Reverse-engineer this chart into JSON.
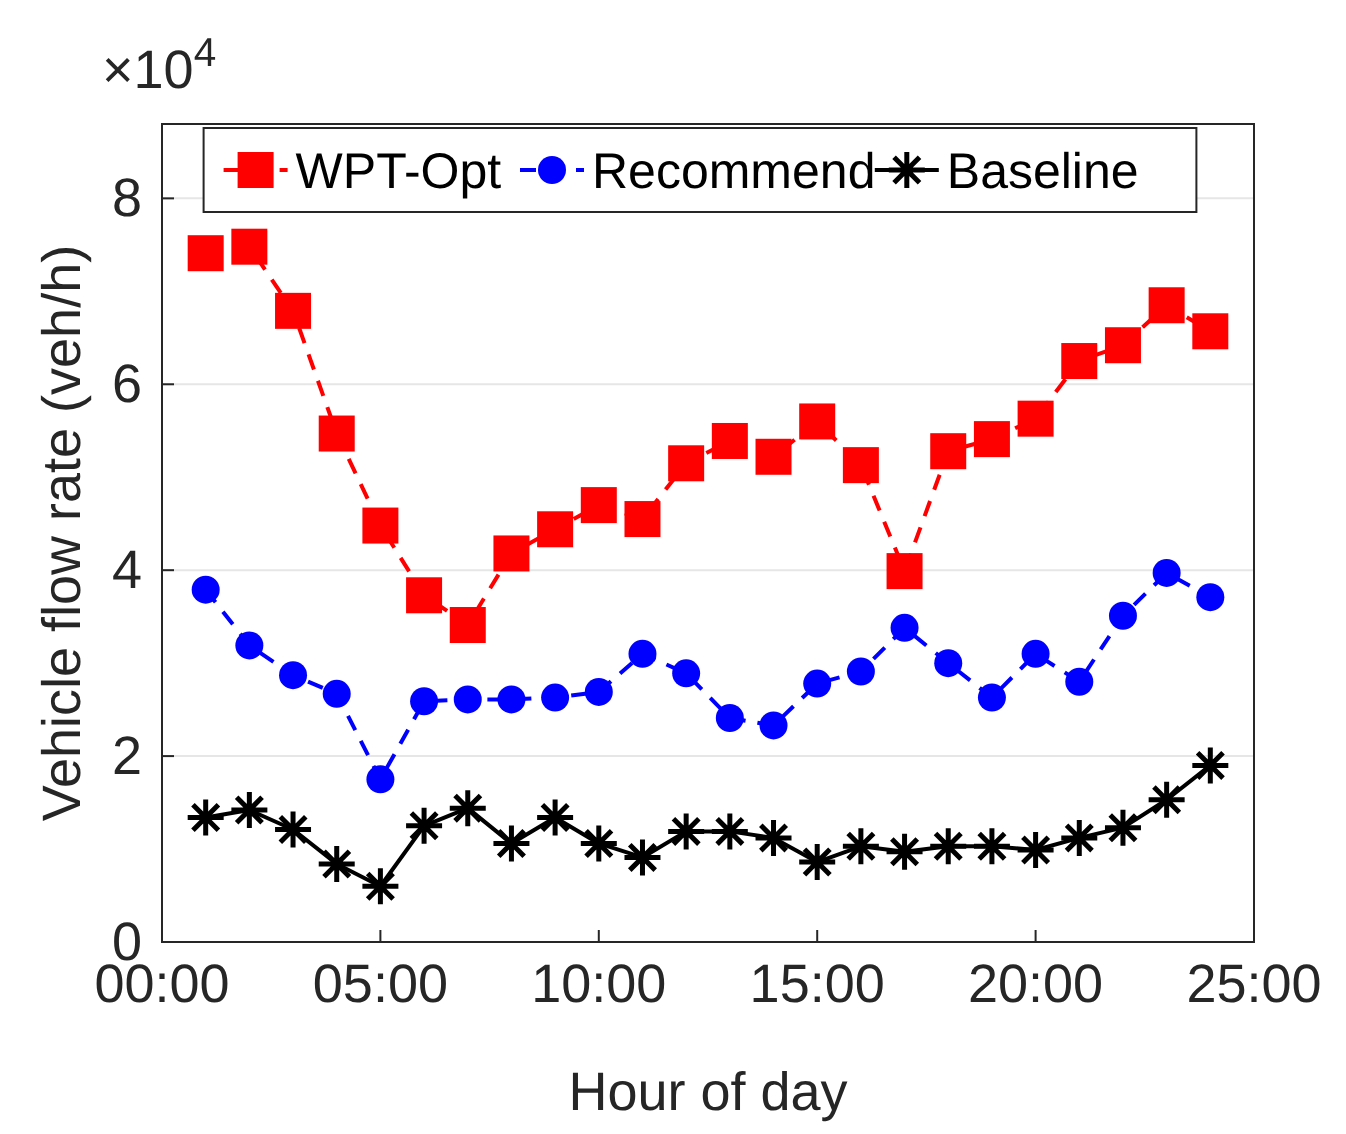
{
  "chart_data": {
    "type": "line",
    "xlabel": "Hour of day",
    "ylabel": "Vehicle flow rate (veh/h)",
    "annotations": [
      "×10$^{4}$"
    ],
    "x": [
      1,
      2,
      3,
      4,
      5,
      6,
      7,
      8,
      9,
      10,
      11,
      12,
      13,
      14,
      15,
      16,
      17,
      18,
      19,
      20,
      21,
      22,
      23,
      24
    ],
    "xlim": [
      0,
      25
    ],
    "xticks": [
      {
        "value": 0,
        "label": "00:00"
      },
      {
        "value": 5,
        "label": "05:00"
      },
      {
        "value": 10,
        "label": "10:00"
      },
      {
        "value": 15,
        "label": "15:00"
      },
      {
        "value": 20,
        "label": "20:00"
      },
      {
        "value": 25,
        "label": "25:00"
      }
    ],
    "ylim": [
      0,
      8.8
    ],
    "yticks": [
      0,
      2,
      4,
      6,
      8
    ],
    "grid": "y",
    "legend": "top",
    "series": [
      {
        "name": "WPT-Opt",
        "color": "#ff0000",
        "marker": "square",
        "line_style": "dashed",
        "values": [
          7.41,
          7.48,
          6.79,
          5.47,
          4.48,
          3.73,
          3.41,
          4.18,
          4.44,
          4.7,
          4.55,
          5.15,
          5.39,
          5.22,
          5.6,
          5.13,
          3.99,
          5.28,
          5.41,
          5.63,
          6.25,
          6.42,
          6.85,
          6.57
        ]
      },
      {
        "name": "Recommend",
        "color": "#0000ff",
        "marker": "circle",
        "line_style": "dashed",
        "values": [
          3.79,
          3.19,
          2.87,
          2.67,
          1.75,
          2.59,
          2.61,
          2.61,
          2.63,
          2.69,
          3.1,
          2.89,
          2.41,
          2.33,
          2.78,
          2.91,
          3.38,
          3,
          2.63,
          3.1,
          2.8,
          3.51,
          3.97,
          3.71
        ]
      },
      {
        "name": "Baseline",
        "color": "#000000",
        "marker": "cross",
        "line_style": "solid",
        "values": [
          1.34,
          1.42,
          1.21,
          0.84,
          0.6,
          1.25,
          1.44,
          1.06,
          1.34,
          1.06,
          0.91,
          1.19,
          1.19,
          1.12,
          0.86,
          1.03,
          0.97,
          1.03,
          1.03,
          0.99,
          1.12,
          1.23,
          1.53,
          1.9
        ]
      }
    ]
  }
}
